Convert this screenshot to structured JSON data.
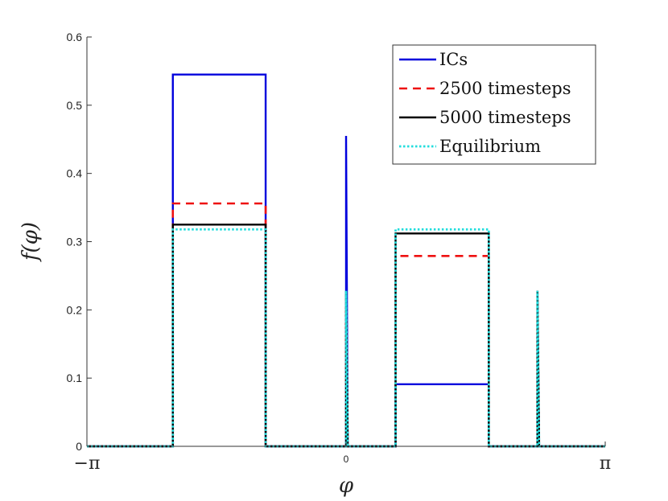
{
  "chart_data": {
    "type": "line",
    "title": "",
    "xlabel": "φ",
    "ylabel": "f(φ)",
    "xlim": [
      -3.1416,
      3.1416
    ],
    "ylim": [
      0,
      0.6
    ],
    "grid": false,
    "legend_placement": "top-right",
    "x_ticks": [
      {
        "value": -3.1416,
        "label": "−π"
      },
      {
        "value": 0,
        "label": "0"
      },
      {
        "value": 3.1416,
        "label": "π"
      }
    ],
    "y_ticks": [
      {
        "value": 0,
        "label": "0"
      },
      {
        "value": 0.1,
        "label": "0.1"
      },
      {
        "value": 0.2,
        "label": "0.2"
      },
      {
        "value": 0.3,
        "label": "0.3"
      },
      {
        "value": 0.4,
        "label": "0.4"
      },
      {
        "value": 0.5,
        "label": "0.5"
      },
      {
        "value": 0.6,
        "label": "0.6"
      }
    ],
    "series": [
      {
        "name": "ICs",
        "color": "#0000dd",
        "style": "solid",
        "points": [
          [
            -3.1416,
            0
          ],
          [
            -2.1,
            0
          ],
          [
            -2.1,
            0.545
          ],
          [
            -0.975,
            0.545
          ],
          [
            -0.975,
            0
          ],
          [
            0,
            0
          ],
          [
            0,
            0.455
          ],
          [
            0.02,
            0
          ],
          [
            0.6,
            0
          ],
          [
            0.6,
            0.091
          ],
          [
            1.73,
            0.091
          ],
          [
            1.73,
            0
          ],
          [
            2.32,
            0
          ],
          [
            2.32,
            0.228
          ],
          [
            2.34,
            0
          ],
          [
            3.1416,
            0
          ]
        ]
      },
      {
        "name": "2500 timesteps",
        "color": "#ee1111",
        "style": "dashed",
        "points": [
          [
            -3.1416,
            0
          ],
          [
            -2.1,
            0
          ],
          [
            -2.1,
            0.356
          ],
          [
            -0.975,
            0.356
          ],
          [
            -0.975,
            0
          ],
          [
            0,
            0
          ],
          [
            0,
            0.228
          ],
          [
            0.02,
            0
          ],
          [
            0.6,
            0
          ],
          [
            0.6,
            0.279
          ],
          [
            1.73,
            0.279
          ],
          [
            1.73,
            0
          ],
          [
            2.32,
            0
          ],
          [
            2.32,
            0.228
          ],
          [
            2.34,
            0
          ],
          [
            3.1416,
            0
          ]
        ]
      },
      {
        "name": "5000 timesteps",
        "color": "#000000",
        "style": "solid",
        "points": [
          [
            -3.1416,
            0
          ],
          [
            -2.1,
            0
          ],
          [
            -2.1,
            0.325
          ],
          [
            -0.975,
            0.325
          ],
          [
            -0.975,
            0
          ],
          [
            0,
            0
          ],
          [
            0,
            0.228
          ],
          [
            0.02,
            0
          ],
          [
            0.6,
            0
          ],
          [
            0.6,
            0.312
          ],
          [
            1.73,
            0.312
          ],
          [
            1.73,
            0
          ],
          [
            2.32,
            0
          ],
          [
            2.32,
            0.228
          ],
          [
            2.34,
            0
          ],
          [
            3.1416,
            0
          ]
        ]
      },
      {
        "name": "Equilibrium",
        "color": "#22dddd",
        "style": "dotted",
        "points": [
          [
            -3.1416,
            0
          ],
          [
            -2.1,
            0
          ],
          [
            -2.1,
            0.318
          ],
          [
            -0.975,
            0.318
          ],
          [
            -0.975,
            0
          ],
          [
            0,
            0
          ],
          [
            0,
            0.228
          ],
          [
            0.02,
            0
          ],
          [
            0.6,
            0
          ],
          [
            0.6,
            0.318
          ],
          [
            1.73,
            0.318
          ],
          [
            1.73,
            0
          ],
          [
            2.32,
            0
          ],
          [
            2.32,
            0.228
          ],
          [
            2.34,
            0
          ],
          [
            3.1416,
            0
          ]
        ]
      }
    ]
  }
}
